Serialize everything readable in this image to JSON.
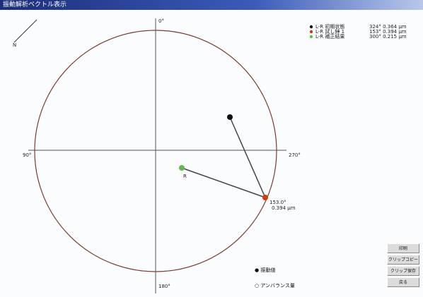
{
  "window": {
    "title": "振動解析ベクトル表示"
  },
  "axes": {
    "top": "0°",
    "left": "90°",
    "right": "270°",
    "bottom": "180°",
    "north": "N"
  },
  "legend": [
    {
      "label": "L-R 初期状態",
      "value": "324° 0.364 μm"
    },
    {
      "label": "L-R 試し錘 1",
      "value": "153° 0.394 μm"
    },
    {
      "label": "L-R 補正結果",
      "value": "300° 0.215 μm"
    }
  ],
  "points": {
    "result_angle": "153.0°",
    "result_amp": "0.394 μm",
    "green_label": "R"
  },
  "options": [
    "● 振動値",
    "○ アンバランス量"
  ],
  "buttons": [
    "印刷",
    "クリップコピー",
    "クリップ保存",
    "戻る"
  ]
}
